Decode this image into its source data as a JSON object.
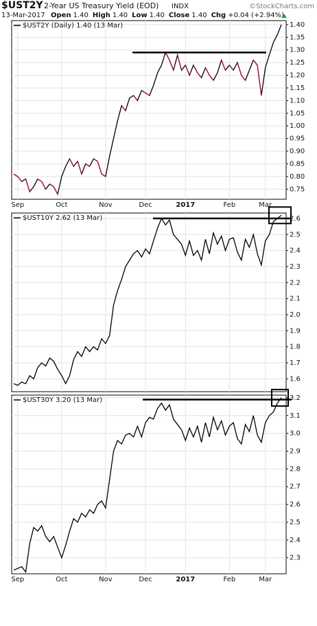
{
  "header": {
    "symbol": "$UST2Y",
    "description": "2-Year US Treasury Yield (EOD)",
    "exchange": "INDX",
    "credit": "©StockCharts.com",
    "date": "13-Mar-2017",
    "quote": [
      {
        "label": "Open",
        "value": "1.40"
      },
      {
        "label": "High",
        "value": "1.40"
      },
      {
        "label": "Low",
        "value": "1.40"
      },
      {
        "label": "Close",
        "value": "1.40"
      },
      {
        "label": "Chg",
        "value": "+0.04 (+2.94%)"
      }
    ]
  },
  "chart_data": [
    {
      "type": "line",
      "legend": "$UST2Y (Daily) 1.40 (13 Mar)",
      "color": "#000000",
      "down_color": "#b01040",
      "grid": true,
      "resistance": 1.29,
      "categories": [
        null,
        "Sep",
        null,
        null,
        null,
        null,
        null,
        null,
        null,
        null,
        null,
        null,
        "Oct",
        null,
        null,
        null,
        null,
        null,
        null,
        null,
        null,
        null,
        null,
        "Nov",
        null,
        null,
        null,
        null,
        null,
        null,
        null,
        null,
        null,
        "Dec",
        null,
        null,
        null,
        null,
        null,
        null,
        null,
        null,
        null,
        "2017",
        null,
        null,
        null,
        null,
        null,
        null,
        null,
        null,
        null,
        null,
        "Feb",
        null,
        null,
        null,
        null,
        null,
        null,
        null,
        null,
        "Mar",
        null,
        null,
        null,
        null
      ],
      "values": [
        0.81,
        0.8,
        0.78,
        0.79,
        0.74,
        0.76,
        0.79,
        0.78,
        0.75,
        0.77,
        0.76,
        0.73,
        0.8,
        0.84,
        0.87,
        0.84,
        0.86,
        0.81,
        0.85,
        0.84,
        0.87,
        0.86,
        0.81,
        0.8,
        0.88,
        0.95,
        1.02,
        1.08,
        1.06,
        1.11,
        1.12,
        1.1,
        1.14,
        1.13,
        1.12,
        1.16,
        1.21,
        1.24,
        1.29,
        1.26,
        1.22,
        1.28,
        1.22,
        1.24,
        1.2,
        1.24,
        1.21,
        1.19,
        1.23,
        1.2,
        1.18,
        1.21,
        1.26,
        1.22,
        1.24,
        1.22,
        1.25,
        1.2,
        1.18,
        1.22,
        1.26,
        1.24,
        1.12,
        1.23,
        1.28,
        1.33,
        1.36,
        1.4
      ],
      "ylim": [
        0.71,
        1.416
      ],
      "yticks": [
        {
          "value": 0.75,
          "label": "0.75"
        },
        {
          "value": 0.8,
          "label": "0.80"
        },
        {
          "value": 0.85,
          "label": "0.85"
        },
        {
          "value": 0.9,
          "label": "0.90"
        },
        {
          "value": 0.95,
          "label": "0.95"
        },
        {
          "value": 1.0,
          "label": "1.00"
        },
        {
          "value": 1.05,
          "label": "1.05"
        },
        {
          "value": 1.1,
          "label": "1.10"
        },
        {
          "value": 1.15,
          "label": "1.15"
        },
        {
          "value": 1.2,
          "label": "1.20"
        },
        {
          "value": 1.25,
          "label": "1.25"
        },
        {
          "value": 1.3,
          "label": "1.30"
        },
        {
          "value": 1.35,
          "label": "1.35"
        },
        {
          "value": 1.4,
          "label": "1.40"
        }
      ]
    },
    {
      "type": "line",
      "legend": "$UST10Y 2.62 (13 Mar)",
      "color": "#000000",
      "grid": true,
      "resistance": 2.6,
      "values": [
        1.57,
        1.56,
        1.58,
        1.57,
        1.62,
        1.6,
        1.67,
        1.7,
        1.68,
        1.73,
        1.71,
        1.66,
        1.62,
        1.57,
        1.62,
        1.72,
        1.77,
        1.74,
        1.8,
        1.77,
        1.8,
        1.78,
        1.85,
        1.82,
        1.87,
        2.06,
        2.15,
        2.22,
        2.3,
        2.34,
        2.38,
        2.4,
        2.36,
        2.41,
        2.38,
        2.46,
        2.54,
        2.6,
        2.56,
        2.59,
        2.5,
        2.47,
        2.44,
        2.37,
        2.46,
        2.37,
        2.4,
        2.34,
        2.47,
        2.38,
        2.51,
        2.44,
        2.49,
        2.4,
        2.47,
        2.48,
        2.39,
        2.34,
        2.47,
        2.42,
        2.5,
        2.38,
        2.31,
        2.46,
        2.5,
        2.58,
        2.6,
        2.62
      ],
      "ylim": [
        1.52,
        2.634
      ],
      "yticks": [
        1.6,
        1.7,
        1.8,
        1.9,
        {
          "value": 2.0,
          "label": "2.0"
        },
        2.1,
        2.2,
        2.3,
        2.4,
        2.5,
        2.6
      ]
    },
    {
      "type": "line",
      "legend": "$UST30Y 3.20 (13 Mar)",
      "color": "#000000",
      "grid": true,
      "resistance": 3.19,
      "categories": [
        null,
        "Sep",
        null,
        null,
        null,
        null,
        null,
        null,
        null,
        null,
        null,
        null,
        "Oct",
        null,
        null,
        null,
        null,
        null,
        null,
        null,
        null,
        null,
        null,
        "Nov",
        null,
        null,
        null,
        null,
        null,
        null,
        null,
        null,
        null,
        "Dec",
        null,
        null,
        null,
        null,
        null,
        null,
        null,
        null,
        null,
        "2017",
        null,
        null,
        null,
        null,
        null,
        null,
        null,
        null,
        null,
        null,
        "Feb",
        null,
        null,
        null,
        null,
        null,
        null,
        null,
        null,
        "Mar",
        null,
        null,
        null,
        null
      ],
      "values": [
        2.23,
        2.24,
        2.25,
        2.22,
        2.38,
        2.47,
        2.45,
        2.48,
        2.42,
        2.39,
        2.42,
        2.36,
        2.3,
        2.37,
        2.45,
        2.52,
        2.5,
        2.55,
        2.53,
        2.57,
        2.55,
        2.6,
        2.62,
        2.58,
        2.74,
        2.9,
        2.96,
        2.94,
        2.99,
        3.0,
        2.98,
        3.04,
        2.98,
        3.06,
        3.09,
        3.08,
        3.14,
        3.17,
        3.13,
        3.16,
        3.08,
        3.05,
        3.02,
        2.96,
        3.03,
        2.98,
        3.04,
        2.95,
        3.06,
        2.98,
        3.09,
        3.02,
        3.07,
        2.99,
        3.04,
        3.06,
        2.97,
        2.94,
        3.05,
        3.01,
        3.1,
        2.99,
        2.95,
        3.06,
        3.1,
        3.12,
        3.17,
        3.2
      ],
      "ylim": [
        2.21,
        3.215
      ],
      "yticks": [
        2.3,
        2.4,
        2.5,
        2.6,
        2.7,
        2.8,
        2.9,
        {
          "value": 3.0,
          "label": "3.0"
        },
        3.1,
        3.2
      ]
    }
  ]
}
